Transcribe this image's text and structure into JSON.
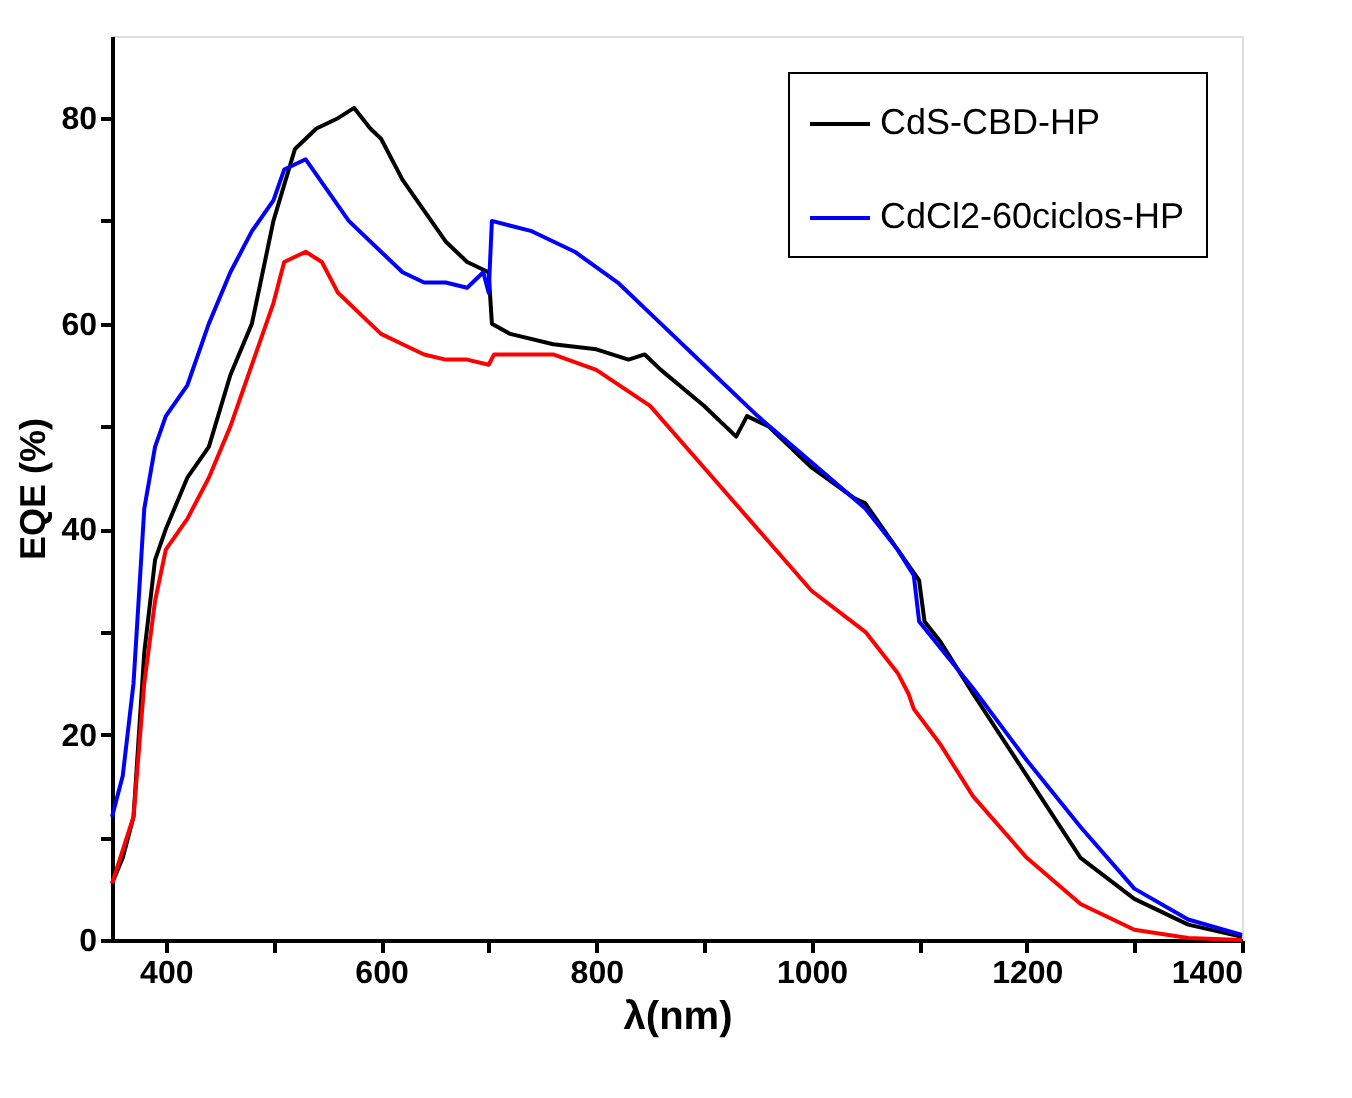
{
  "chart_data": {
    "type": "line",
    "xlabel": "λ(nm)",
    "ylabel": "EQE (%)",
    "xlim": [
      350,
      1400
    ],
    "ylim": [
      0,
      88
    ],
    "xticks": [
      400,
      {
        "value": 500,
        "label": null
      },
      600,
      {
        "value": 700,
        "label": null
      },
      800,
      {
        "value": 900,
        "label": null
      },
      1000,
      {
        "value": 1100,
        "label": null
      },
      1200,
      {
        "value": 1300,
        "label": null
      },
      1400
    ],
    "yticks": [
      0,
      {
        "value": 10,
        "label": null
      },
      20,
      {
        "value": 30,
        "label": null
      },
      40,
      {
        "value": 50,
        "label": null
      },
      60,
      {
        "value": 70,
        "label": null
      },
      80
    ],
    "grid": false,
    "legend": "top right",
    "marker": "none",
    "line_style": "solid",
    "series": [
      {
        "name": "CdS-CBD-HP",
        "color": "#000000",
        "x": [
          350,
          360,
          370,
          380,
          390,
          400,
          420,
          440,
          460,
          480,
          500,
          520,
          540,
          560,
          575,
          590,
          600,
          620,
          640,
          660,
          680,
          700,
          703,
          720,
          760,
          800,
          830,
          845,
          860,
          900,
          930,
          940,
          960,
          1000,
          1040,
          1050,
          1080,
          1100,
          1105,
          1120,
          1150,
          1200,
          1250,
          1300,
          1350,
          1400
        ],
        "values": [
          5.5,
          8,
          12,
          28,
          37,
          40,
          45,
          48,
          55,
          60,
          70,
          77,
          79,
          80,
          81,
          79,
          78,
          74,
          71,
          68,
          66,
          65,
          60,
          59,
          58,
          57.5,
          56.5,
          57,
          55.5,
          52,
          49,
          51,
          50,
          46,
          43,
          42.5,
          38,
          35,
          31,
          29,
          24,
          16,
          8,
          4,
          1.5,
          0.3
        ]
      },
      {
        "name": null,
        "color": "#ff0000",
        "x": [
          350,
          370,
          380,
          390,
          400,
          420,
          440,
          460,
          480,
          500,
          510,
          530,
          545,
          560,
          580,
          600,
          620,
          640,
          660,
          680,
          700,
          705,
          760,
          800,
          850,
          900,
          950,
          1000,
          1050,
          1080,
          1090,
          1095,
          1120,
          1150,
          1200,
          1250,
          1300,
          1350,
          1400
        ],
        "values": [
          5.5,
          12,
          25,
          33,
          38,
          41,
          45,
          50,
          56,
          62,
          66,
          67,
          66,
          63,
          61,
          59,
          58,
          57,
          56.5,
          56.5,
          56,
          57,
          57,
          55.5,
          52,
          46,
          40,
          34,
          30,
          26,
          24,
          22.5,
          19,
          14,
          8,
          3.5,
          1,
          0.2,
          0
        ]
      },
      {
        "name": "CdCl2-60ciclos-HP",
        "color": "#0000ff",
        "x": [
          350,
          360,
          370,
          380,
          390,
          400,
          420,
          440,
          460,
          480,
          500,
          510,
          530,
          550,
          570,
          600,
          620,
          640,
          660,
          680,
          695,
          700,
          703,
          740,
          780,
          820,
          860,
          900,
          950,
          1000,
          1050,
          1080,
          1095,
          1100,
          1150,
          1200,
          1250,
          1300,
          1350,
          1400
        ],
        "values": [
          12,
          16,
          25,
          42,
          48,
          51,
          54,
          60,
          65,
          69,
          72,
          75,
          76,
          73,
          70,
          67,
          65,
          64,
          64,
          63.5,
          65,
          63,
          70,
          69,
          67,
          64,
          60,
          56,
          51,
          46.5,
          42,
          38,
          35.5,
          31,
          24.5,
          17.5,
          11,
          5,
          2,
          0.5
        ]
      }
    ]
  }
}
